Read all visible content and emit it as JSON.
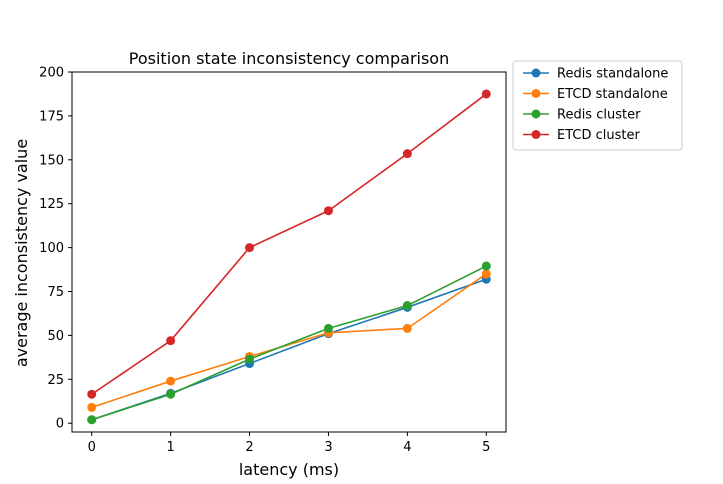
{
  "chart_data": {
    "type": "line",
    "title": "Position state inconsistency comparison",
    "xlabel": "latency (ms)",
    "ylabel": "average inconsistency value",
    "x": [
      0,
      1,
      2,
      3,
      4,
      5
    ],
    "xticks": [
      "0",
      "1",
      "2",
      "3",
      "4",
      "5"
    ],
    "yticks": [
      "0",
      "25",
      "50",
      "75",
      "100",
      "125",
      "150",
      "175",
      "200"
    ],
    "xlim": [
      -0.25,
      5.25
    ],
    "ylim": [
      -5,
      200
    ],
    "grid": false,
    "legend_position": "outside-top-right",
    "series": [
      {
        "name": "Redis standalone",
        "color": "#1f77b4",
        "values": [
          2,
          17,
          34,
          51,
          66,
          82
        ]
      },
      {
        "name": "ETCD standalone",
        "color": "#ff7f0e",
        "values": [
          9,
          24,
          38,
          51.5,
          54,
          85
        ]
      },
      {
        "name": "Redis cluster",
        "color": "#2ca02c",
        "values": [
          2,
          16.5,
          36.5,
          54,
          67,
          89.5
        ]
      },
      {
        "name": "ETCD cluster",
        "color": "#d62728",
        "values": [
          16.5,
          47,
          100,
          121,
          153.5,
          187.5
        ]
      }
    ]
  }
}
